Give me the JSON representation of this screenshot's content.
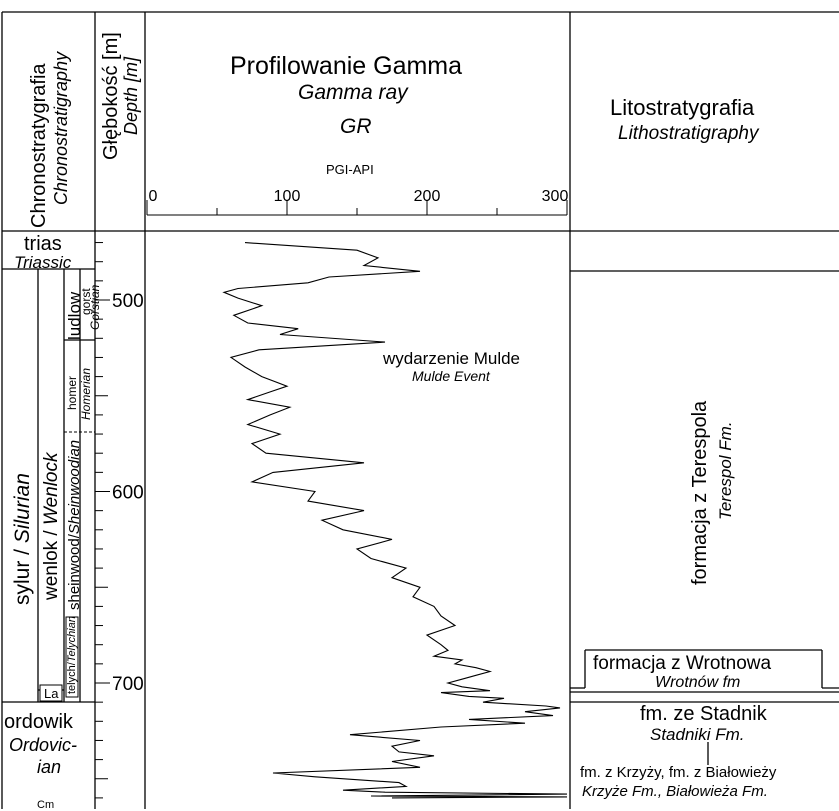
{
  "header": {
    "chrono_pl": "Chronostratygrafia",
    "chrono_en": "Chronostratigraphy",
    "depth_pl": "Głębokość [m]",
    "depth_en": "Depth [m]",
    "gamma_title_pl": "Profilowanie Gamma",
    "gamma_title_en": "Gamma ray",
    "gamma_abbr": "GR",
    "gamma_unit": "PGI-API",
    "litho_pl": "Litostratygrafia",
    "litho_en": "Lithostratigraphy"
  },
  "chrono": {
    "trias_pl": "trias",
    "trias_en": "Triassic",
    "ludlow": "ludlow",
    "gorst_pl": "gorst",
    "gorst_en": "Gorstian",
    "homer_pl": "homer",
    "homer_en": "Homerian",
    "sylur": "sylur / ",
    "silurian": "Silurian",
    "wenlok": "wenlok / ",
    "wenlock": "Wenlock",
    "sheinwood": "sheinwood/",
    "sheinwoodian": "Sheinwoodian",
    "telych": "telych/",
    "telychian": "Telychian",
    "la": "La",
    "ordowik": "ordowik",
    "ordovic_1": "Ordovic-",
    "ordovic_2": "ian",
    "cm": "Cm"
  },
  "litho": {
    "terespol_pl": "formacja z Terespola",
    "terespol_en": "Terespol Fm.",
    "wrotnow_pl": "formacja z Wrotnowa",
    "wrotnow_en": "Wrotnów fm",
    "stadnik_pl": "fm. ze Stadnik",
    "stadnik_en": "Stadniki Fm.",
    "krzyze_pl": "fm. z Krzyży, fm. z Białowieży",
    "krzyze_en": "Krzyże Fm., Białowieża Fm."
  },
  "annotation": {
    "event_pl": "wydarzenie Mulde",
    "event_en": "Mulde Event"
  },
  "chart_data": {
    "type": "line",
    "title": "Profilowanie Gamma",
    "xlabel": "PGI-API",
    "ylabel": "Głębokość [m]",
    "xlim": [
      0,
      300
    ],
    "ylim": [
      760,
      470
    ],
    "xticks": [
      "0",
      "100",
      "200",
      "300"
    ],
    "yticks": [
      "500",
      "600",
      "700"
    ],
    "series": [
      {
        "x": [
          70,
          150,
          165,
          155,
          195,
          130,
          115,
          65,
          55,
          65,
          82,
          62,
          72,
          108,
          95,
          170,
          80,
          60,
          70,
          82,
          100,
          88,
          72,
          102,
          88,
          72,
          95,
          75,
          85,
          155,
          90,
          75,
          120,
          115,
          155,
          125,
          140,
          175,
          150,
          160,
          185,
          175,
          195,
          190,
          205,
          210,
          220,
          200,
          210,
          215,
          205,
          225,
          220,
          235,
          245,
          235,
          225,
          215,
          225,
          245,
          210,
          230,
          255,
          240,
          285,
          295,
          270,
          290,
          230,
          270,
          210,
          145,
          195,
          175,
          180,
          205,
          175,
          195,
          90,
          120,
          180,
          185,
          140,
          170,
          300,
          160,
          300,
          175,
          185
        ],
        "y": [
          470,
          474,
          478,
          482,
          485,
          488,
          491,
          494,
          496,
          499,
          503,
          508,
          512,
          515,
          518,
          522,
          526,
          530,
          535,
          540,
          545,
          548,
          552,
          556,
          560,
          565,
          570,
          575,
          580,
          585,
          590,
          595,
          600,
          605,
          610,
          615,
          620,
          625,
          630,
          635,
          640,
          645,
          650,
          655,
          660,
          665,
          670,
          675,
          680,
          683,
          686,
          688,
          690,
          692,
          694,
          696,
          698,
          700,
          702,
          704,
          705,
          707,
          708,
          710,
          712,
          713,
          715,
          717,
          719,
          721,
          723,
          727,
          730,
          733,
          736,
          738,
          741,
          744,
          747,
          749,
          752,
          754,
          756,
          757,
          758,
          759,
          759.5,
          760,
          760
        ]
      }
    ]
  }
}
